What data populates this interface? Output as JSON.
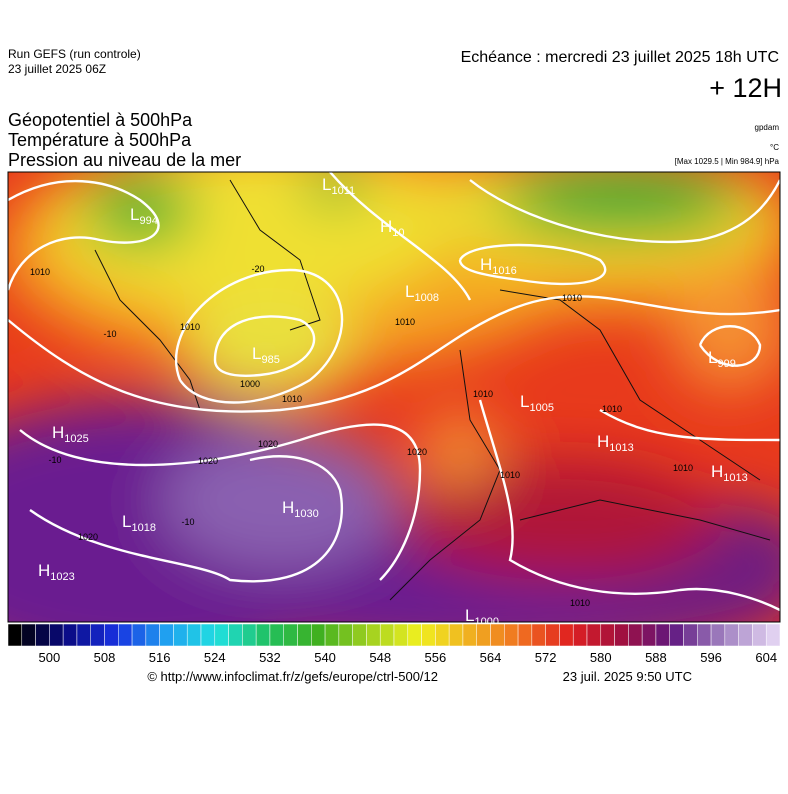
{
  "header": {
    "run": "Run GEFS (run controle)",
    "date": "23 juillet 2025 06Z",
    "echeance": "Echéance : mercredi 23 juillet 2025 18h UTC",
    "lead": "+ 12H"
  },
  "titles": [
    "Géopotentiel à 500hPa",
    "Température à 500hPa",
    "Pression au niveau de la mer"
  ],
  "units": [
    "gpdam",
    "°C",
    "[Max 1029.5 | Min 984.9] hPa"
  ],
  "centers": [
    {
      "type": "L",
      "value": 994
    },
    {
      "type": "L",
      "value": 1011
    },
    {
      "type": "H",
      "value": 10
    },
    {
      "type": "H",
      "value": 1016
    },
    {
      "type": "L",
      "value": 1008
    },
    {
      "type": "L",
      "value": 985
    },
    {
      "type": "L",
      "value": 999
    },
    {
      "type": "L",
      "value": 1005
    },
    {
      "type": "H",
      "value": 1025
    },
    {
      "type": "H",
      "value": 1013
    },
    {
      "type": "H",
      "value": 1013
    },
    {
      "type": "L",
      "value": 1018
    },
    {
      "type": "H",
      "value": 1030
    },
    {
      "type": "H",
      "value": 1023
    },
    {
      "type": "L",
      "value": 1000
    }
  ],
  "isobar_labels": [
    1010,
    1010,
    1000,
    1010,
    1020,
    1020,
    1020,
    1020,
    1010,
    1010,
    1010,
    1010,
    1010,
    1010,
    1010
  ],
  "temperature_labels": [
    -20,
    -10,
    -10,
    -10
  ],
  "colorbar": {
    "lim": [
      494,
      606
    ],
    "ticks": [
      500,
      508,
      516,
      524,
      532,
      540,
      548,
      556,
      564,
      572,
      580,
      588,
      596,
      604
    ],
    "colors": [
      "#000000",
      "#0a0a80",
      "#1830e0",
      "#20a0f0",
      "#20e0e0",
      "#20c060",
      "#40b020",
      "#a0d020",
      "#f0f020",
      "#f0b020",
      "#f07020",
      "#e02020",
      "#a01040",
      "#601880",
      "#a080c0",
      "#e0d0f0"
    ]
  },
  "footer": {
    "url": "© http://www.infoclimat.fr/z/gefs/europe/ctrl-500/12",
    "time": "23 juil. 2025  9:50 UTC"
  }
}
